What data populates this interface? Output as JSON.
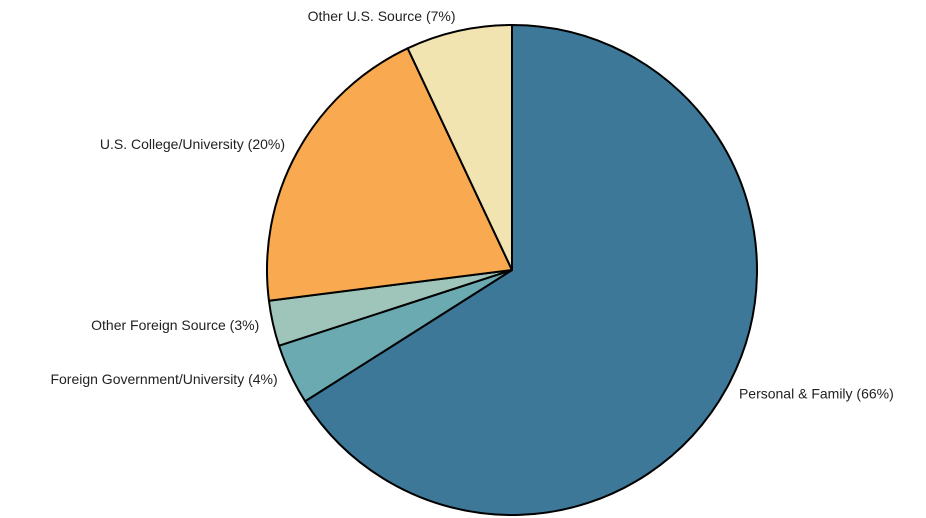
{
  "chart_data": {
    "type": "pie",
    "categories": [
      "Personal & Family (66%)",
      "Foreign Government/University (4%)",
      "Other Foreign Source (3%)",
      "U.S. College/University (20%)",
      "Other U.S. Source (7%)"
    ],
    "values": [
      66,
      4,
      3,
      20,
      7
    ],
    "colors": [
      "#3d7898",
      "#6aaab0",
      "#9fc4b9",
      "#f9a94f",
      "#f2e4b0"
    ]
  }
}
